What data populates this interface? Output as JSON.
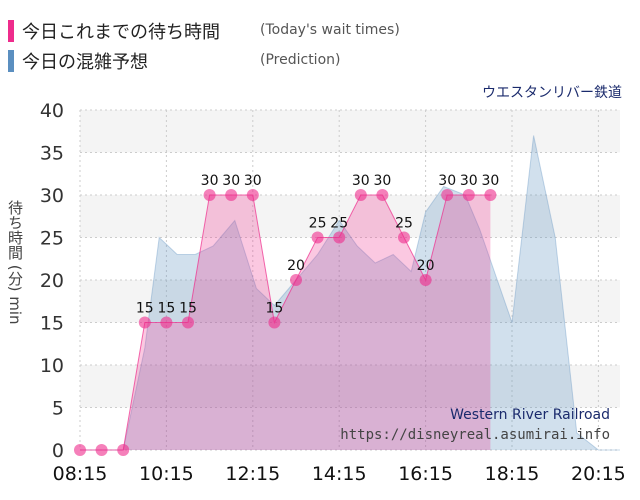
{
  "legend": [
    {
      "label": "今日これまでの待ち時間",
      "sublabel": "(Today's wait times)",
      "color": "#ee2c8c"
    },
    {
      "label": "今日の混雑予想",
      "sublabel": "(Prediction)",
      "color": "#5b8fc0"
    }
  ],
  "attraction": "ウエスタンリバー鉄道",
  "watermark": {
    "name": "Western River Railroad",
    "url": "https://disneyreal.asumirai.info"
  },
  "chart_data": {
    "type": "area",
    "ylabel": "待ち時間 (分) min",
    "ylim": [
      0,
      40
    ],
    "yticks": [
      0,
      5,
      10,
      15,
      20,
      25,
      30,
      35,
      40
    ],
    "xlim": [
      "08:15",
      "20:45"
    ],
    "xticks": [
      "08:15",
      "10:15",
      "12:15",
      "14:15",
      "16:15",
      "18:15",
      "20:15"
    ],
    "grid": true,
    "series": [
      {
        "name": "今日これまでの待ち時間",
        "color": "#ee2c8c",
        "points": [
          {
            "t": "08:15",
            "v": 0
          },
          {
            "t": "08:45",
            "v": 0
          },
          {
            "t": "09:15",
            "v": 0
          },
          {
            "t": "09:45",
            "v": 15
          },
          {
            "t": "10:15",
            "v": 15
          },
          {
            "t": "10:45",
            "v": 15
          },
          {
            "t": "11:15",
            "v": 30
          },
          {
            "t": "11:45",
            "v": 30
          },
          {
            "t": "12:15",
            "v": 30
          },
          {
            "t": "12:45",
            "v": 15
          },
          {
            "t": "13:15",
            "v": 20
          },
          {
            "t": "13:45",
            "v": 25
          },
          {
            "t": "14:15",
            "v": 25
          },
          {
            "t": "14:45",
            "v": 30
          },
          {
            "t": "15:15",
            "v": 30
          },
          {
            "t": "15:45",
            "v": 25
          },
          {
            "t": "16:15",
            "v": 20
          },
          {
            "t": "16:45",
            "v": 30
          },
          {
            "t": "17:15",
            "v": 30
          },
          {
            "t": "17:45",
            "v": 30
          }
        ]
      },
      {
        "name": "今日の混雑予想",
        "color": "#5b8fc0",
        "points": [
          {
            "t": "08:15",
            "v": 0
          },
          {
            "t": "08:45",
            "v": 0
          },
          {
            "t": "09:15",
            "v": 0
          },
          {
            "t": "09:45",
            "v": 12
          },
          {
            "t": "10:05",
            "v": 25
          },
          {
            "t": "10:30",
            "v": 23
          },
          {
            "t": "10:55",
            "v": 23
          },
          {
            "t": "11:20",
            "v": 24
          },
          {
            "t": "11:50",
            "v": 27
          },
          {
            "t": "12:20",
            "v": 19
          },
          {
            "t": "12:45",
            "v": 17
          },
          {
            "t": "13:15",
            "v": 20
          },
          {
            "t": "13:45",
            "v": 23
          },
          {
            "t": "14:15",
            "v": 27
          },
          {
            "t": "14:40",
            "v": 24
          },
          {
            "t": "15:05",
            "v": 22
          },
          {
            "t": "15:30",
            "v": 23
          },
          {
            "t": "15:55",
            "v": 21
          },
          {
            "t": "16:15",
            "v": 28
          },
          {
            "t": "16:40",
            "v": 31
          },
          {
            "t": "17:10",
            "v": 30
          },
          {
            "t": "17:30",
            "v": 26
          },
          {
            "t": "18:15",
            "v": 15
          },
          {
            "t": "18:45",
            "v": 37
          },
          {
            "t": "19:15",
            "v": 25
          },
          {
            "t": "19:45",
            "v": 2
          },
          {
            "t": "20:15",
            "v": 0
          },
          {
            "t": "20:45",
            "v": 0
          }
        ]
      }
    ]
  }
}
